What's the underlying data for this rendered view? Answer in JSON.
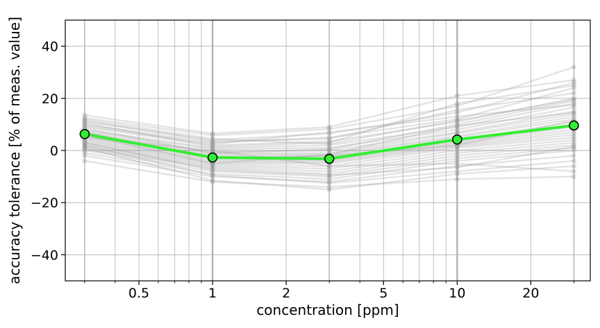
{
  "chart_data": {
    "type": "line",
    "title": "",
    "xlabel": "concentration [ppm]",
    "ylabel": "accuracy tolerance [% of meas. value]",
    "x_scale": "log",
    "xlim": [
      0.25,
      35
    ],
    "ylim": [
      -50,
      50
    ],
    "x": [
      0.3,
      1,
      3,
      10,
      30
    ],
    "x_ticks": [
      0.5,
      1,
      2,
      5,
      10,
      20
    ],
    "x_tick_labels": [
      "0.5",
      "1",
      "2",
      "5",
      "10",
      "20"
    ],
    "y_ticks": [
      -40,
      -20,
      0,
      20,
      40
    ],
    "y_tick_labels": [
      "−40",
      "−20",
      "0",
      "20",
      "40"
    ],
    "grid": true,
    "legend": "none",
    "colors": {
      "mean_line": "#33ee33",
      "mean_marker_fill": "#33ee33",
      "mean_marker_edge": "#000000",
      "sample_lines": "#999999",
      "grid": "#b0b0b0",
      "emphasized_grid": "#999999"
    },
    "series": [
      {
        "values": [
          6.3,
          -2.7,
          -3.2,
          4.2,
          9.6
        ]
      },
      {
        "values": [
          12.5,
          5.8,
          8.2,
          17.0,
          32.0
        ]
      },
      {
        "values": [
          11.0,
          4.0,
          6.5,
          14.5,
          26.0
        ]
      },
      {
        "values": [
          10.0,
          3.0,
          5.0,
          12.0,
          24.0
        ]
      },
      {
        "values": [
          9.0,
          2.0,
          3.5,
          11.0,
          20.0
        ]
      },
      {
        "values": [
          8.0,
          1.0,
          2.0,
          9.0,
          18.0
        ]
      },
      {
        "values": [
          7.5,
          0.5,
          1.0,
          8.0,
          16.5
        ]
      },
      {
        "values": [
          7.0,
          -0.5,
          0.0,
          7.0,
          15.0
        ]
      },
      {
        "values": [
          6.5,
          -1.0,
          -1.0,
          6.5,
          14.0
        ]
      },
      {
        "values": [
          6.0,
          -1.5,
          -1.5,
          5.5,
          13.0
        ]
      },
      {
        "values": [
          5.5,
          -2.0,
          -2.0,
          5.0,
          12.0
        ]
      },
      {
        "values": [
          5.0,
          -2.5,
          -2.5,
          4.0,
          11.0
        ]
      },
      {
        "values": [
          4.5,
          -3.0,
          -3.0,
          3.5,
          10.0
        ]
      },
      {
        "values": [
          4.0,
          -3.5,
          -3.5,
          3.0,
          9.0
        ]
      },
      {
        "values": [
          3.5,
          -4.0,
          -4.0,
          2.5,
          8.0
        ]
      },
      {
        "values": [
          3.0,
          -4.5,
          -4.5,
          2.0,
          7.0
        ]
      },
      {
        "values": [
          2.5,
          -5.0,
          -5.0,
          1.5,
          6.0
        ]
      },
      {
        "values": [
          2.0,
          -5.5,
          -6.0,
          1.0,
          5.0
        ]
      },
      {
        "values": [
          1.5,
          -6.0,
          -7.0,
          0.0,
          4.0
        ]
      },
      {
        "values": [
          1.0,
          -6.5,
          -8.0,
          -1.0,
          3.0
        ]
      },
      {
        "values": [
          0.5,
          -7.0,
          -9.0,
          -2.0,
          2.0
        ]
      },
      {
        "values": [
          0.0,
          -8.0,
          -10.0,
          -3.0,
          1.0
        ]
      },
      {
        "values": [
          -1.0,
          -9.0,
          -11.0,
          -4.0,
          0.0
        ]
      },
      {
        "values": [
          -2.0,
          -10.0,
          -12.0,
          -6.0,
          -2.0
        ]
      },
      {
        "values": [
          -4.0,
          -12.0,
          -14.0,
          -11.0,
          -10.0
        ]
      },
      {
        "values": [
          13.5,
          6.5,
          9.0,
          21.0,
          27.0
        ]
      },
      {
        "values": [
          11.5,
          3.5,
          4.5,
          15.5,
          22.0
        ]
      },
      {
        "values": [
          8.5,
          -1.0,
          0.5,
          10.0,
          19.0
        ]
      },
      {
        "values": [
          9.5,
          2.5,
          7.0,
          13.0,
          17.5
        ]
      },
      {
        "values": [
          2.0,
          -9.5,
          -12.5,
          -8.0,
          -4.0
        ]
      },
      {
        "values": [
          5.0,
          0.0,
          -6.0,
          -5.0,
          -8.0
        ]
      },
      {
        "values": [
          10.5,
          1.5,
          3.0,
          18.0,
          25.0
        ]
      },
      {
        "values": [
          7.0,
          -3.0,
          -2.0,
          2.0,
          11.5
        ]
      },
      {
        "values": [
          3.0,
          -7.5,
          -9.5,
          -6.5,
          1.5
        ]
      },
      {
        "values": [
          6.0,
          -5.0,
          -1.5,
          9.5,
          14.5
        ]
      },
      {
        "values": [
          12.0,
          4.5,
          2.5,
          11.5,
          19.5
        ]
      },
      {
        "values": [
          1.0,
          -11.5,
          -15.0,
          -9.0,
          -6.0
        ]
      }
    ]
  }
}
